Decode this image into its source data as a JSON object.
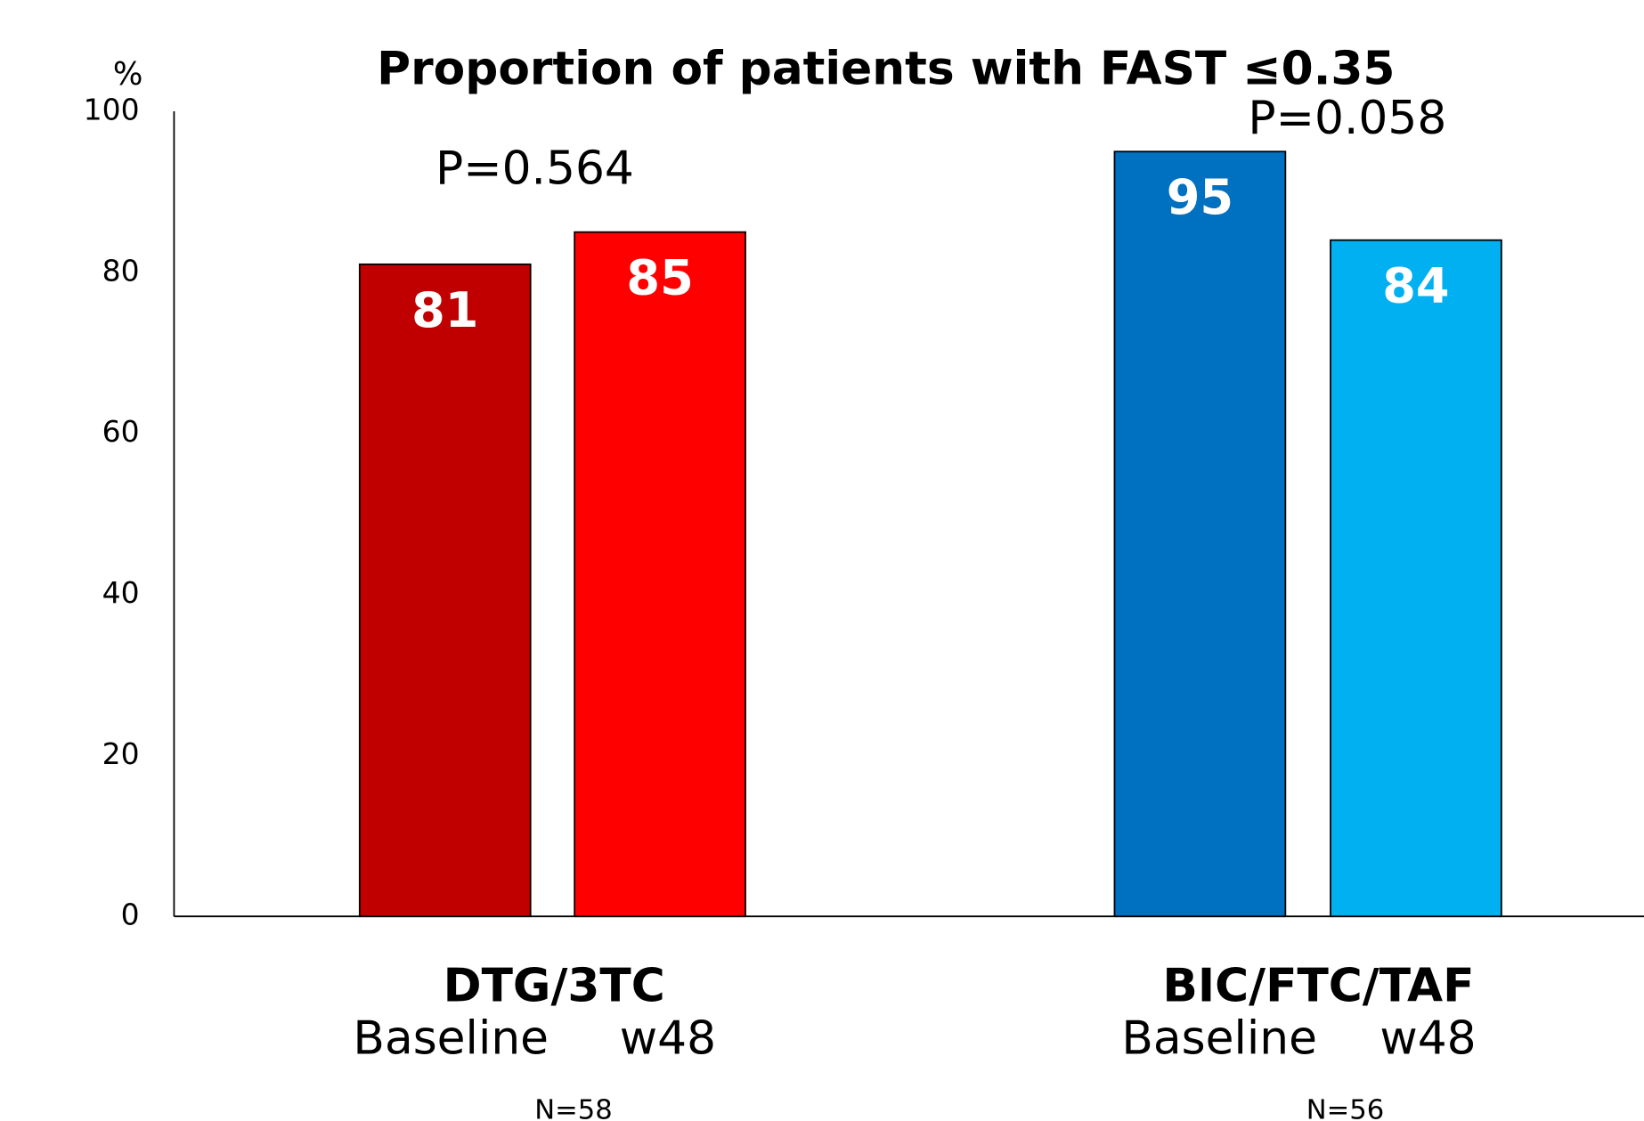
{
  "chart_data": {
    "type": "bar",
    "title": "Proportion of patients with FAST ≤0.35",
    "y_label": "%",
    "ylim": [
      0,
      100
    ],
    "yticks": [
      0,
      20,
      40,
      60,
      80,
      100
    ],
    "grid": false,
    "groups": [
      {
        "name": "DTG/3TC",
        "categories": [
          "Baseline",
          "w48"
        ],
        "values": [
          81,
          85
        ],
        "colors": [
          "#c00000",
          "#ff0000"
        ],
        "annotation": "P=0.564",
        "n": "N=58"
      },
      {
        "name": "BIC/FTC/TAF",
        "categories": [
          "Baseline",
          "w48"
        ],
        "values": [
          95,
          84
        ],
        "colors": [
          "#0070c0",
          "#00b0f0"
        ],
        "annotation": "P=0.058",
        "n": "N=56"
      }
    ]
  }
}
